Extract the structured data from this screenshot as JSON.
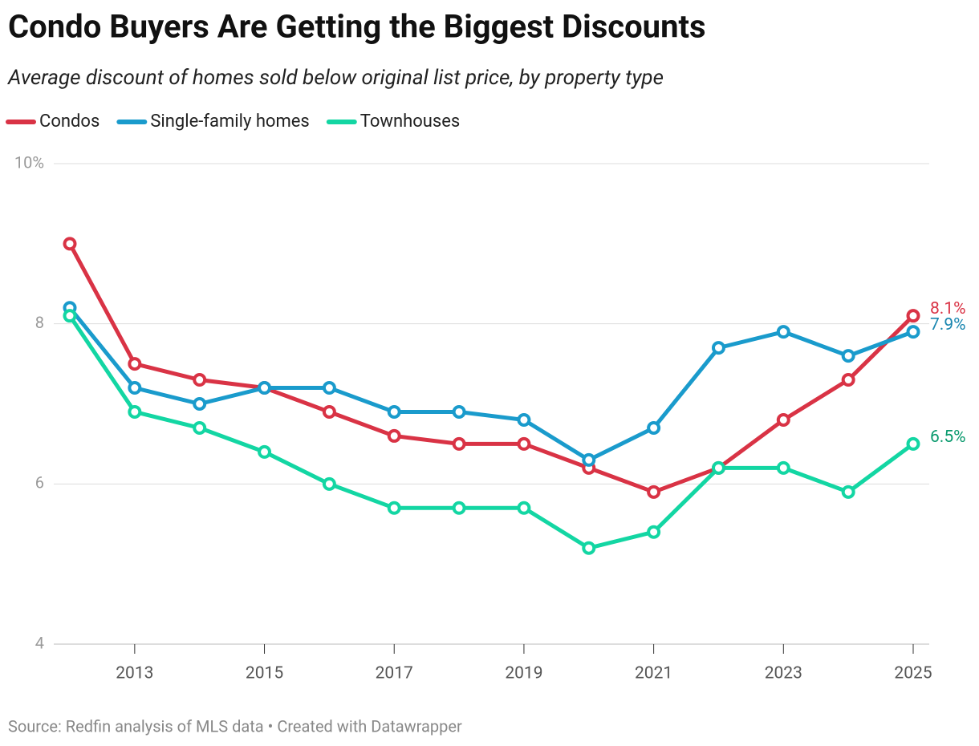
{
  "chart_data": {
    "type": "line",
    "title": "Condo Buyers Are Getting the Biggest Discounts",
    "subtitle": "Average discount of homes sold below original list price, by property type",
    "source": "Source: Redfin analysis of MLS data • Created with Datawrapper",
    "x": [
      2012,
      2013,
      2014,
      2015,
      2016,
      2017,
      2018,
      2019,
      2020,
      2021,
      2022,
      2023,
      2024,
      2025
    ],
    "xlim": [
      2012,
      2025
    ],
    "xticks": [
      2013,
      2015,
      2017,
      2019,
      2021,
      2023,
      2025
    ],
    "ylim": [
      4,
      10
    ],
    "yticks": [
      4,
      6,
      8,
      {
        "value": 10,
        "label": "10%"
      }
    ],
    "grid": true,
    "legend": "top-left",
    "series": [
      {
        "name": "Condos",
        "color": "#d93345",
        "label_color": "#d93345",
        "values": [
          9.0,
          7.5,
          7.3,
          7.2,
          6.9,
          6.6,
          6.5,
          6.5,
          6.2,
          5.9,
          6.2,
          6.8,
          7.3,
          8.1
        ],
        "value_labels": [
          null,
          null,
          null,
          null,
          null,
          null,
          null,
          null,
          null,
          null,
          null,
          null,
          null,
          "8.1%"
        ]
      },
      {
        "name": "Single-family homes",
        "color": "#1a9bcc",
        "label_color": "#1a86b0",
        "values": [
          8.2,
          7.2,
          7.0,
          7.2,
          7.2,
          6.9,
          6.9,
          6.8,
          6.3,
          6.7,
          7.7,
          7.9,
          7.6,
          7.9
        ],
        "value_labels": [
          null,
          null,
          null,
          null,
          null,
          null,
          null,
          null,
          null,
          null,
          null,
          null,
          null,
          "7.9%"
        ]
      },
      {
        "name": "Townhouses",
        "color": "#13d6a3",
        "label_color": "#0a9a6e",
        "values": [
          8.1,
          6.9,
          6.7,
          6.4,
          6.0,
          5.7,
          5.7,
          5.7,
          5.2,
          5.4,
          6.2,
          6.2,
          5.9,
          6.5
        ],
        "value_labels": [
          null,
          null,
          null,
          null,
          null,
          null,
          null,
          null,
          null,
          null,
          null,
          null,
          null,
          "6.5%"
        ]
      }
    ]
  }
}
